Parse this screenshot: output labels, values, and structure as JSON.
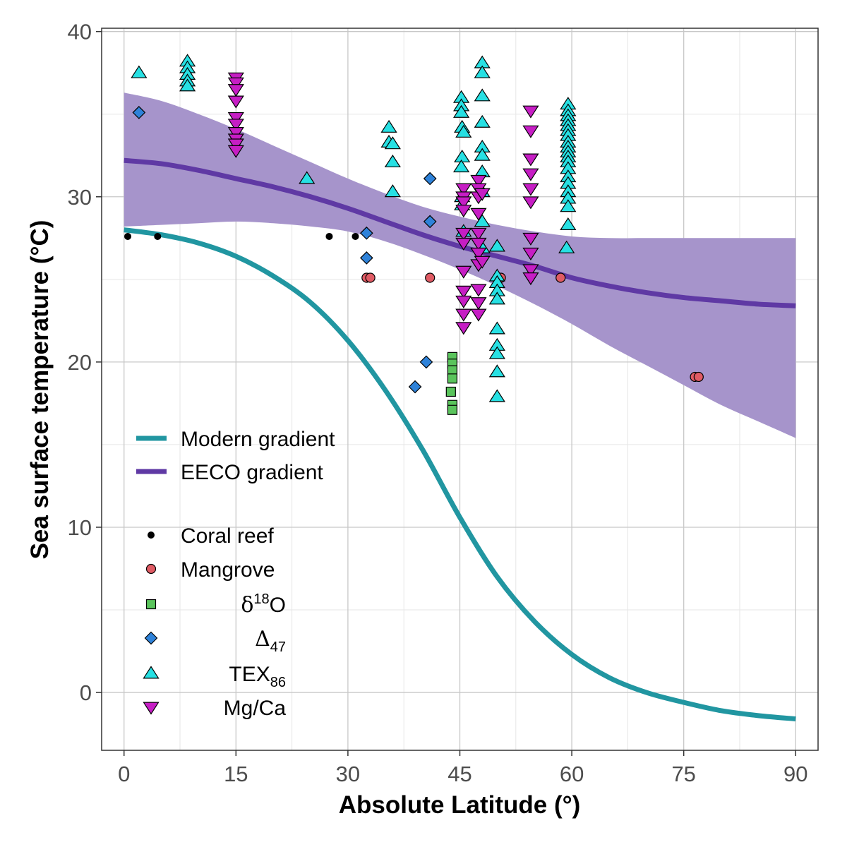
{
  "chart_data": {
    "type": "scatter",
    "xlabel": "Absolute Latitude (°)",
    "ylabel": "Sea surface temperature (°C)",
    "xlim": [
      -3,
      93
    ],
    "ylim": [
      -3.5,
      40.2
    ],
    "xticks": [
      0,
      15,
      30,
      45,
      60,
      75,
      90
    ],
    "yticks": [
      0,
      10,
      20,
      30,
      40
    ],
    "grid": true,
    "legend_position": "left",
    "colors": {
      "modern": "#2196a1",
      "eeco": "#5f39a4",
      "band": "#a694cb",
      "coral": "#000000",
      "mangrove": "#e05b64",
      "d18O": "#5ac45c",
      "D47": "#2e82d9",
      "TEX86": "#27e0e3",
      "MgCa": "#c61ec4"
    },
    "lines": [
      {
        "name": "Modern gradient",
        "x": [
          0,
          5,
          10,
          15,
          20,
          25,
          30,
          35,
          40,
          45,
          50,
          55,
          60,
          65,
          70,
          75,
          80,
          85,
          90
        ],
        "y": [
          28.0,
          27.7,
          27.2,
          26.4,
          25.2,
          23.6,
          21.3,
          18.3,
          14.7,
          10.6,
          7.0,
          4.3,
          2.3,
          0.9,
          0.0,
          -0.6,
          -1.1,
          -1.4,
          -1.6
        ]
      },
      {
        "name": "EECO gradient",
        "x": [
          0,
          5,
          10,
          15,
          20,
          25,
          30,
          35,
          40,
          45,
          50,
          55,
          60,
          65,
          70,
          75,
          80,
          85,
          90
        ],
        "y": [
          32.2,
          32.0,
          31.6,
          31.1,
          30.6,
          30.0,
          29.3,
          28.5,
          27.7,
          27.0,
          26.4,
          25.8,
          25.1,
          24.6,
          24.2,
          23.9,
          23.7,
          23.5,
          23.4
        ],
        "band_lower": [
          28.2,
          28.3,
          28.4,
          28.5,
          28.4,
          28.2,
          27.9,
          27.3,
          26.5,
          25.6,
          24.6,
          23.5,
          22.3,
          21.0,
          19.8,
          18.6,
          17.4,
          16.4,
          15.4
        ],
        "band_upper": [
          36.3,
          35.8,
          35.0,
          34.1,
          33.1,
          32.1,
          31.1,
          30.2,
          29.4,
          28.8,
          28.3,
          27.9,
          27.6,
          27.5,
          27.5,
          27.5,
          27.5,
          27.5,
          27.5
        ]
      }
    ],
    "series": [
      {
        "name": "Coral reef",
        "marker": "dot",
        "points": [
          [
            0.5,
            27.6
          ],
          [
            4.5,
            27.6
          ],
          [
            27.5,
            27.6
          ],
          [
            31,
            27.6
          ]
        ]
      },
      {
        "name": "Mangrove",
        "marker": "circle",
        "points": [
          [
            32.5,
            25.1
          ],
          [
            33,
            25.1
          ],
          [
            41,
            25.1
          ],
          [
            50.5,
            25.1
          ],
          [
            58.5,
            25.1
          ],
          [
            76.5,
            19.1
          ],
          [
            77,
            19.1
          ]
        ]
      },
      {
        "name": "δ18O",
        "marker": "square",
        "points": [
          [
            44,
            20.3
          ],
          [
            44,
            19.9
          ],
          [
            44,
            19.5
          ],
          [
            44,
            19.0
          ],
          [
            43.8,
            18.2
          ],
          [
            44,
            17.4
          ],
          [
            44,
            17.1
          ]
        ]
      },
      {
        "name": "Δ47",
        "marker": "diamond",
        "points": [
          [
            2,
            35.1
          ],
          [
            32.5,
            27.8
          ],
          [
            32.5,
            26.3
          ],
          [
            39,
            18.5
          ],
          [
            40.5,
            20.0
          ],
          [
            41,
            28.5
          ],
          [
            41,
            31.1
          ]
        ]
      },
      {
        "name": "TEX86",
        "marker": "triangle-up",
        "points": [
          [
            2,
            37.5
          ],
          [
            8.5,
            38.2
          ],
          [
            8.5,
            37.8
          ],
          [
            8.5,
            37.4
          ],
          [
            8.5,
            37.0
          ],
          [
            8.5,
            36.7
          ],
          [
            24.5,
            31.1
          ],
          [
            35.5,
            34.2
          ],
          [
            35.5,
            33.3
          ],
          [
            36,
            33.2
          ],
          [
            36,
            32.1
          ],
          [
            36,
            30.3
          ],
          [
            45.2,
            36.0
          ],
          [
            45.2,
            35.5
          ],
          [
            45.2,
            35.1
          ],
          [
            45.3,
            34.2
          ],
          [
            45.5,
            33.9
          ],
          [
            45.3,
            32.4
          ],
          [
            45.2,
            31.8
          ],
          [
            45.3,
            30.0
          ],
          [
            45.3,
            29.5
          ],
          [
            45.5,
            27.9
          ],
          [
            48,
            38.1
          ],
          [
            48,
            37.5
          ],
          [
            48,
            36.1
          ],
          [
            48,
            34.5
          ],
          [
            48,
            33.0
          ],
          [
            48,
            32.5
          ],
          [
            48,
            31.5
          ],
          [
            48,
            30.3
          ],
          [
            48,
            28.5
          ],
          [
            48,
            26.9
          ],
          [
            50,
            27.0
          ],
          [
            50,
            25.2
          ],
          [
            50,
            24.8
          ],
          [
            50,
            24.3
          ],
          [
            50,
            23.8
          ],
          [
            50,
            22.0
          ],
          [
            50,
            21.0
          ],
          [
            50,
            20.5
          ],
          [
            50,
            19.4
          ],
          [
            50,
            17.9
          ],
          [
            59.5,
            35.6
          ],
          [
            59.5,
            35.2
          ],
          [
            59.5,
            34.9
          ],
          [
            59.5,
            34.6
          ],
          [
            59.5,
            34.3
          ],
          [
            59.5,
            34.0
          ],
          [
            59.5,
            33.7
          ],
          [
            59.5,
            33.3
          ],
          [
            59.5,
            33.0
          ],
          [
            59.5,
            32.7
          ],
          [
            59.5,
            32.4
          ],
          [
            59.5,
            32.1
          ],
          [
            59.5,
            31.7
          ],
          [
            59.5,
            31.2
          ],
          [
            59.5,
            30.8
          ],
          [
            59.5,
            30.3
          ],
          [
            59.5,
            29.9
          ],
          [
            59.5,
            29.4
          ],
          [
            59.5,
            28.3
          ],
          [
            59.3,
            26.9
          ]
        ]
      },
      {
        "name": "Mg/Ca",
        "marker": "triangle-down",
        "points": [
          [
            15,
            37.2
          ],
          [
            15,
            36.9
          ],
          [
            15,
            36.5
          ],
          [
            15,
            35.8
          ],
          [
            15,
            34.8
          ],
          [
            15,
            34.4
          ],
          [
            15,
            33.9
          ],
          [
            15,
            33.5
          ],
          [
            15,
            33.2
          ],
          [
            15,
            32.8
          ],
          [
            45.5,
            30.5
          ],
          [
            45.5,
            30.0
          ],
          [
            45.5,
            29.7
          ],
          [
            45.5,
            29.2
          ],
          [
            45.5,
            27.8
          ],
          [
            45.5,
            27.2
          ],
          [
            45.5,
            25.5
          ],
          [
            45.5,
            24.3
          ],
          [
            45.5,
            23.7
          ],
          [
            45.5,
            22.9
          ],
          [
            45.5,
            22.1
          ],
          [
            47.5,
            31.0
          ],
          [
            47.5,
            30.5
          ],
          [
            47.5,
            30.0
          ],
          [
            47.5,
            29.0
          ],
          [
            47.5,
            27.8
          ],
          [
            47.5,
            27.2
          ],
          [
            47.5,
            26.6
          ],
          [
            47.5,
            25.9
          ],
          [
            47.5,
            24.4
          ],
          [
            47.5,
            23.6
          ],
          [
            47.5,
            22.9
          ],
          [
            48,
            30.2
          ],
          [
            48,
            26.1
          ],
          [
            54.5,
            35.2
          ],
          [
            54.5,
            34.0
          ],
          [
            54.5,
            32.3
          ],
          [
            54.5,
            31.4
          ],
          [
            54.5,
            30.5
          ],
          [
            54.5,
            29.7
          ],
          [
            54.5,
            27.5
          ],
          [
            54.5,
            26.6
          ],
          [
            54.5,
            25.6
          ],
          [
            54.5,
            25.1
          ]
        ]
      }
    ]
  },
  "legend": {
    "lines": [
      {
        "label": "Modern gradient",
        "color": "#2196a1"
      },
      {
        "label": "EECO gradient",
        "color": "#5f39a4"
      }
    ],
    "markers": [
      {
        "label": "Coral reef",
        "marker": "dot",
        "color": "#000000"
      },
      {
        "label": "Mangrove",
        "marker": "circle",
        "color": "#e05b64"
      },
      {
        "main": "δ",
        "sup": "18",
        "post": "O",
        "marker": "square",
        "color": "#5ac45c"
      },
      {
        "main": "Δ",
        "sub": "47",
        "marker": "diamond",
        "color": "#2e82d9"
      },
      {
        "main": "TEX",
        "sub": "86",
        "marker": "triangle-up",
        "color": "#27e0e3"
      },
      {
        "label": "Mg/Ca",
        "marker": "triangle-down",
        "color": "#c61ec4"
      }
    ]
  }
}
